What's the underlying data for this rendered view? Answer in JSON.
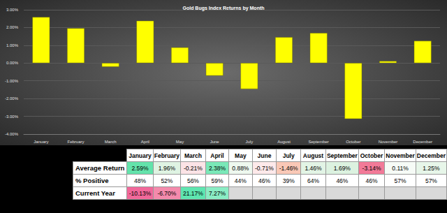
{
  "chart_data": {
    "type": "bar",
    "title": "Gold Bugs Index Returns by Month",
    "categories": [
      "January",
      "February",
      "March",
      "April",
      "May",
      "June",
      "July",
      "August",
      "September",
      "October",
      "November",
      "December"
    ],
    "values": [
      2.59,
      1.96,
      -0.21,
      2.38,
      0.88,
      -0.71,
      -1.46,
      1.46,
      1.69,
      -3.14,
      0.11,
      1.25
    ],
    "color": "#ffff00",
    "ylim": [
      -4,
      3
    ],
    "yticks": [
      {
        "value": -4,
        "label": "-4.00%"
      },
      {
        "value": -3,
        "label": "-3.00%"
      },
      {
        "value": -2,
        "label": "-2.00%"
      },
      {
        "value": -1,
        "label": "-1.00%"
      },
      {
        "value": 0,
        "label": "0.00%"
      },
      {
        "value": 1,
        "label": "1.00%"
      },
      {
        "value": 2,
        "label": "2.00%"
      },
      {
        "value": 3,
        "label": "3.00%"
      }
    ],
    "grid": true
  },
  "table": {
    "columns": [
      "January",
      "February",
      "March",
      "April",
      "May",
      "June",
      "July",
      "August",
      "September",
      "October",
      "November",
      "December"
    ],
    "rows": [
      {
        "label": "Average Return",
        "cells": [
          "2.59%",
          "1.96%",
          "-0.21%",
          "2.38%",
          "0.88%",
          "-0.71%",
          "-1.46%",
          "1.46%",
          "1.69%",
          "-3.14%",
          "0.11%",
          "1.25%"
        ],
        "colors": [
          "#63e3ab",
          "#dff3e3",
          "#fbe3e6",
          "#7ae8b8",
          "#eef8ef",
          "#fde9ea",
          "#f9c8b6",
          "#e2f4e5",
          "#dcf2e0",
          "#f27a98",
          "#f6fbf6",
          "#e7f6e9"
        ]
      },
      {
        "label": "% Positive",
        "cells": [
          "48%",
          "52%",
          "56%",
          "59%",
          "44%",
          "46%",
          "39%",
          "64%",
          "46%",
          "46%",
          "57%",
          "57%"
        ]
      },
      {
        "label": "Current Year",
        "cells": [
          "-10.13%",
          "-6.70%",
          "21.17%",
          "7.27%",
          null,
          null,
          null,
          null,
          null,
          null,
          null,
          null
        ],
        "colors": [
          "#f2689a",
          "#f48aac",
          "#5ee6b0",
          "#8aedc4",
          "#d9d9d9",
          "#d9d9d9",
          "#d9d9d9",
          "#d9d9d9",
          "#d9d9d9",
          "#d9d9d9",
          "#d9d9d9",
          "#d9d9d9"
        ]
      }
    ]
  }
}
